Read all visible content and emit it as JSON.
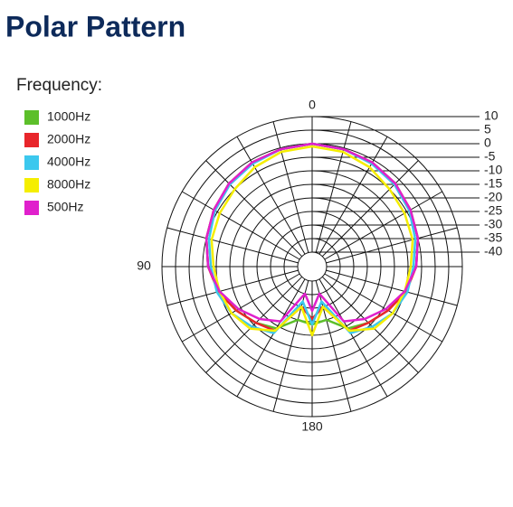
{
  "chart_data": {
    "type": "polar",
    "title": "Polar Pattern",
    "legend_title": "Frequency:",
    "theta": [
      0,
      15,
      30,
      45,
      60,
      75,
      90,
      105,
      120,
      135,
      150,
      165,
      180,
      195,
      210,
      225,
      240,
      255,
      270,
      285,
      300,
      315,
      330,
      345
    ],
    "thetaticks": [
      0,
      90,
      180
    ],
    "rlim": [
      -40,
      10
    ],
    "rticks": [
      10,
      5,
      0,
      -5,
      -10,
      -15,
      -20,
      -25,
      -30,
      -35,
      -40
    ],
    "series": [
      {
        "name": "1000Hz",
        "color": "#5cbf2a",
        "values": [
          0,
          -0.5,
          -1,
          -2,
          -3.5,
          -5,
          -7,
          -10,
          -13,
          -16,
          -19,
          -25,
          -24,
          -25,
          -19,
          -16,
          -13,
          -10,
          -7,
          -5,
          -3.5,
          -2,
          -1,
          -0.5
        ]
      },
      {
        "name": "2000Hz",
        "color": "#e8262b",
        "values": [
          0,
          -0.5,
          -1,
          -2,
          -3.5,
          -5,
          -7,
          -9.5,
          -13,
          -16,
          -18,
          -30,
          -26,
          -30,
          -18,
          -16,
          -13,
          -9.5,
          -7,
          -5,
          -3.5,
          -2,
          -1,
          -0.5
        ]
      },
      {
        "name": "4000Hz",
        "color": "#3cc8ee",
        "values": [
          0,
          -0.5,
          -1.5,
          -2.5,
          -4,
          -6,
          -8,
          -9,
          -11,
          -14,
          -17,
          -32,
          -24,
          -32,
          -17,
          -14,
          -11,
          -9,
          -8,
          -6,
          -4,
          -2.5,
          -1.5,
          -0.5
        ]
      },
      {
        "name": "8000Hz",
        "color": "#f5ee00",
        "values": [
          -1,
          -1.5,
          -3,
          -5,
          -6,
          -7,
          -9,
          -10,
          -11,
          -13,
          -18,
          -30,
          -20,
          -30,
          -18,
          -13,
          -11,
          -10,
          -9,
          -7,
          -6,
          -5,
          -3,
          -1.5
        ]
      },
      {
        "name": "500Hz",
        "color": "#e020cc",
        "values": [
          0,
          -0.5,
          -1,
          -2,
          -3.5,
          -5,
          -7,
          -10,
          -14,
          -18,
          -22,
          -35,
          -29,
          -35,
          -22,
          -18,
          -14,
          -10,
          -7,
          -5,
          -3.5,
          -2,
          -1,
          -0.5
        ]
      }
    ]
  }
}
